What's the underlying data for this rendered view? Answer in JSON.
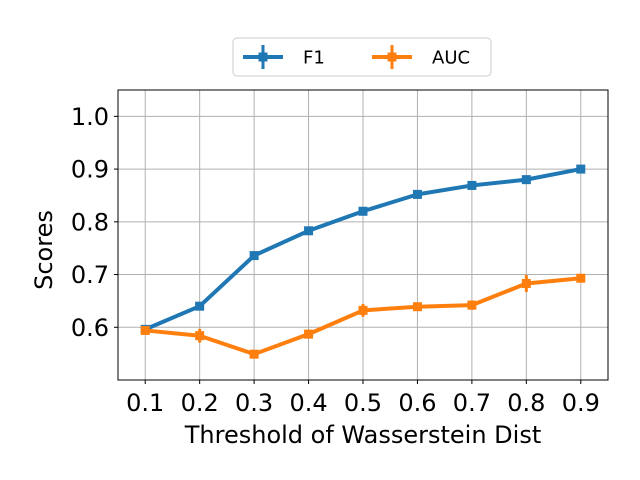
{
  "chart_data": {
    "type": "line",
    "xlabel": "Threshold of Wasserstein Dist",
    "ylabel": "Scores",
    "x": [
      0.1,
      0.2,
      0.3,
      0.4,
      0.5,
      0.6,
      0.7,
      0.8,
      0.9
    ],
    "x_tick_labels": [
      "0.1",
      "0.2",
      "0.3",
      "0.4",
      "0.5",
      "0.6",
      "0.7",
      "0.8",
      "0.9"
    ],
    "y_ticks": [
      0.6,
      0.7,
      0.8,
      0.9,
      1.0
    ],
    "y_tick_labels": [
      "0.6",
      "0.7",
      "0.8",
      "0.9",
      "1.0"
    ],
    "xlim": [
      0.05,
      0.95
    ],
    "ylim": [
      0.5,
      1.05
    ],
    "grid": true,
    "legend_position": "top-center, above plot",
    "series": [
      {
        "name": "F1",
        "color": "#1f77b4",
        "marker": "square",
        "values": [
          0.596,
          0.64,
          0.736,
          0.783,
          0.82,
          0.852,
          0.869,
          0.88,
          0.9
        ],
        "errors": [
          0.004,
          0.005,
          0.005,
          0.004,
          0.004,
          0.004,
          0.004,
          0.004,
          0.003
        ]
      },
      {
        "name": "AUC",
        "color": "#ff7f0e",
        "marker": "square",
        "values": [
          0.594,
          0.584,
          0.549,
          0.587,
          0.632,
          0.639,
          0.642,
          0.683,
          0.693
        ],
        "errors": [
          0.006,
          0.013,
          0.005,
          0.008,
          0.012,
          0.005,
          0.009,
          0.016,
          0.005
        ]
      }
    ]
  }
}
